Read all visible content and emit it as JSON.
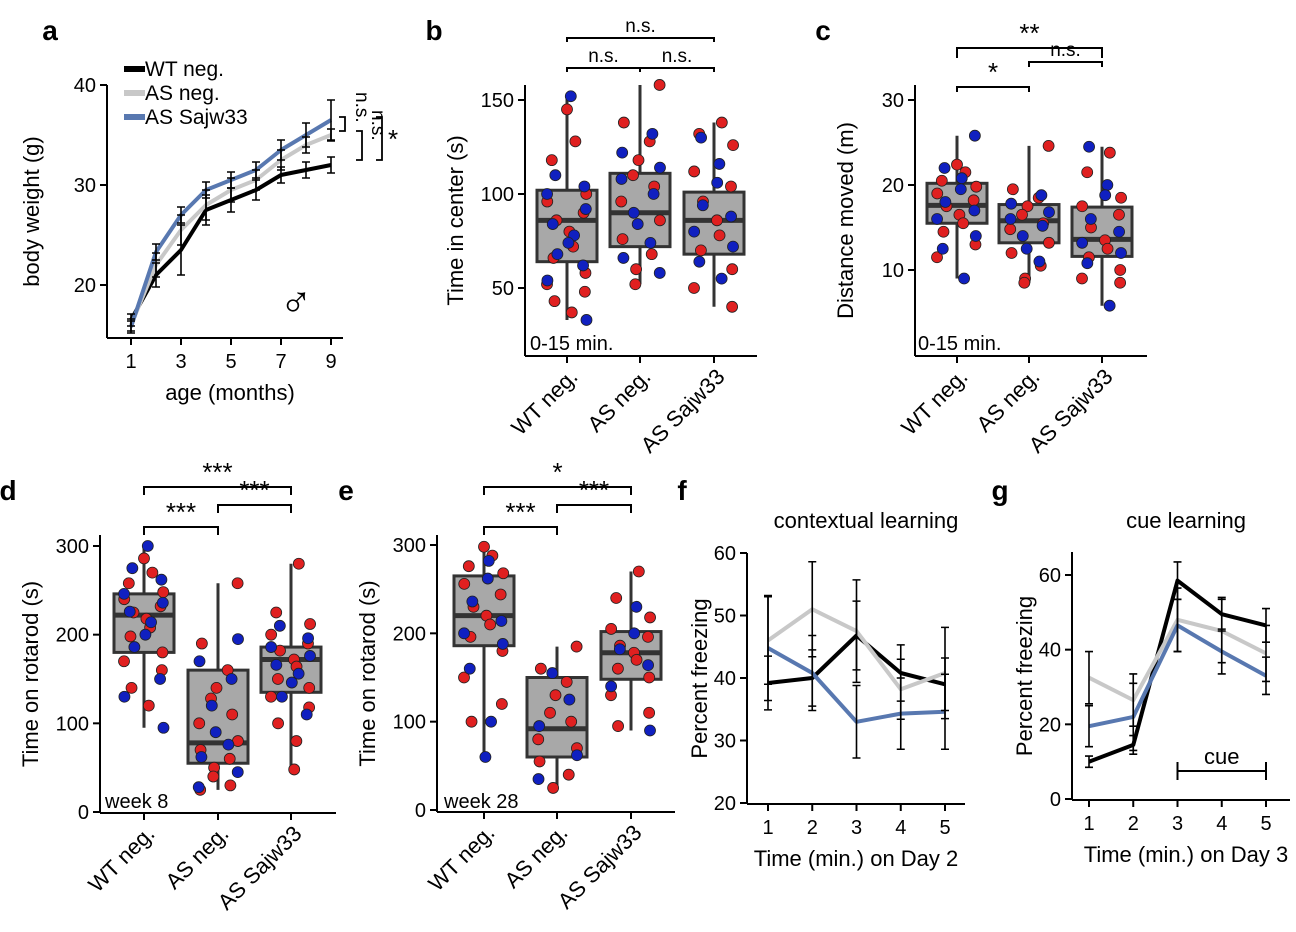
{
  "colors": {
    "wt": "#000000",
    "as_neg": "#c8c8c8",
    "sajw": "#5878b0",
    "female": "#e02020",
    "male": "#1020c0",
    "box": "#a8a8a8"
  },
  "chart_data": [
    {
      "id": "a",
      "panel_label": "a",
      "type": "line",
      "xlabel": "age (months)",
      "ylabel": "body weight (g)",
      "x": [
        1,
        2,
        3,
        4,
        5,
        6,
        7,
        8,
        9
      ],
      "xticks": [
        1,
        3,
        5,
        7,
        9
      ],
      "yticks": [
        20,
        30,
        40
      ],
      "xlim": [
        0.5,
        9.5
      ],
      "ylim": [
        15,
        40
      ],
      "series": [
        {
          "name": "WT neg.",
          "color": "#000000",
          "values": [
            16.5,
            21,
            23.5,
            27.5,
            28.5,
            29.5,
            31,
            31.5,
            32
          ],
          "err": [
            0.6,
            1.2,
            2.5,
            1.5,
            1.2,
            1,
            0.8,
            0.8,
            0.8
          ]
        },
        {
          "name": "AS neg.",
          "color": "#c8c8c8",
          "values": [
            16,
            22,
            25.5,
            28,
            29.5,
            30.5,
            32.5,
            34,
            35
          ],
          "err": [
            0.6,
            1.2,
            1.5,
            1.5,
            1.2,
            1,
            1,
            0.8,
            0.6
          ]
        },
        {
          "name": "AS Sajw33",
          "color": "#5878b0",
          "values": [
            15.8,
            23.3,
            27,
            29.5,
            30.5,
            31.5,
            33.5,
            35,
            36.5
          ],
          "err": [
            0.6,
            0.8,
            0.8,
            0.8,
            0.8,
            0.8,
            1,
            1.2,
            2
          ]
        }
      ],
      "legend": [
        "WT neg.",
        "AS neg.",
        "AS Sajw33"
      ],
      "symbol": "♂",
      "sig": [
        {
          "label": "n.s."
        },
        {
          "label": "n.s."
        },
        {
          "label": "*"
        }
      ]
    },
    {
      "id": "b",
      "panel_label": "b",
      "type": "box",
      "ylabel": "Time in center (s)",
      "categories": [
        "WT neg.",
        "AS neg.",
        "AS Sajw33"
      ],
      "yticks": [
        50,
        100,
        150
      ],
      "ylim": [
        20,
        165
      ],
      "boxes": [
        {
          "min": 33,
          "q1": 64,
          "median": 86,
          "q3": 102,
          "max": 152
        },
        {
          "min": 52,
          "q1": 72,
          "median": 90,
          "q3": 111,
          "max": 158
        },
        {
          "min": 40,
          "q1": 68,
          "median": 86,
          "q3": 101,
          "max": 138
        }
      ],
      "points": [
        {
          "f": [
            145,
            128,
            118,
            100,
            96,
            90,
            86,
            80,
            72,
            66,
            58,
            52,
            48,
            43,
            37
          ],
          "m": [
            152,
            110,
            104,
            100,
            92,
            84,
            78,
            74,
            68,
            62,
            54,
            33
          ]
        },
        {
          "f": [
            158,
            138,
            128,
            118,
            110,
            104,
            96,
            86,
            76,
            68,
            60,
            52
          ],
          "m": [
            132,
            122,
            114,
            108,
            100,
            90,
            84,
            74,
            66,
            58
          ]
        },
        {
          "f": [
            138,
            132,
            126,
            112,
            104,
            96,
            86,
            78,
            70,
            60,
            50,
            40
          ],
          "m": [
            130,
            116,
            106,
            94,
            88,
            80,
            72,
            64,
            55
          ]
        }
      ],
      "inset": "0-15 min.",
      "sig": [
        {
          "label": "n.s."
        },
        {
          "label": "n.s."
        },
        {
          "label": "n.s."
        }
      ]
    },
    {
      "id": "c",
      "panel_label": "c",
      "type": "box",
      "ylabel": "Distance moved (m)",
      "categories": [
        "WT neg.",
        "AS neg.",
        "AS Sajw33"
      ],
      "yticks": [
        10,
        20,
        30
      ],
      "ylim": [
        0,
        31
      ],
      "boxes": [
        {
          "min": 9,
          "q1": 15.5,
          "median": 17.6,
          "q3": 20.2,
          "max": 25.8
        },
        {
          "min": 8.5,
          "q1": 13.2,
          "median": 15.8,
          "q3": 17.7,
          "max": 24.6
        },
        {
          "min": 5.8,
          "q1": 11.6,
          "median": 13.6,
          "q3": 17.4,
          "max": 24.5
        }
      ],
      "points": [
        {
          "f": [
            22.4,
            21.5,
            20.5,
            19.8,
            19,
            18.2,
            17.5,
            16.5,
            15.5,
            14.5,
            13,
            11.5
          ],
          "m": [
            25.8,
            22,
            20.8,
            19.5,
            18,
            17,
            16,
            14,
            12.5,
            9
          ]
        },
        {
          "f": [
            24.6,
            19.5,
            18.5,
            17.5,
            16.5,
            15.5,
            14.8,
            13.2,
            12,
            10.5,
            9,
            8.5
          ],
          "m": [
            18.8,
            17.8,
            16.8,
            16,
            15.2,
            14,
            12.5,
            11
          ]
        },
        {
          "f": [
            23.8,
            21.5,
            18.5,
            17.5,
            16.5,
            15,
            13.5,
            12.5,
            11.5,
            10,
            9,
            8.5
          ],
          "m": [
            24.5,
            20,
            18.8,
            16,
            14.5,
            13.2,
            12,
            10.8,
            5.8
          ]
        }
      ],
      "inset": "0-15 min.",
      "sig": [
        {
          "label": "*"
        },
        {
          "label": "n.s."
        },
        {
          "label": "**"
        }
      ]
    },
    {
      "id": "d",
      "panel_label": "d",
      "type": "box",
      "ylabel": "Time on rotarod (s)",
      "categories": [
        "WT neg.",
        "AS neg.",
        "AS Sajw33"
      ],
      "yticks": [
        0,
        100,
        200,
        300
      ],
      "ylim": [
        0,
        310
      ],
      "boxes": [
        {
          "min": 95,
          "q1": 180,
          "median": 222,
          "q3": 246,
          "max": 300
        },
        {
          "min": 25,
          "q1": 55,
          "median": 78,
          "q3": 160,
          "max": 258
        },
        {
          "min": 48,
          "q1": 135,
          "median": 172,
          "q3": 186,
          "max": 280
        }
      ],
      "points": [
        {
          "f": [
            286,
            270,
            258,
            248,
            240,
            232,
            225,
            218,
            208,
            198,
            180,
            170,
            160,
            140,
            120
          ],
          "m": [
            300,
            275,
            262,
            246,
            236,
            226,
            214,
            200,
            186,
            150,
            130,
            95
          ]
        },
        {
          "f": [
            258,
            190,
            160,
            140,
            128,
            110,
            100,
            80,
            70,
            60,
            50,
            40,
            30,
            25
          ],
          "m": [
            195,
            170,
            150,
            120,
            90,
            76,
            62,
            45,
            28
          ]
        },
        {
          "f": [
            280,
            225,
            212,
            200,
            190,
            182,
            172,
            164,
            150,
            140,
            130,
            118,
            100,
            80,
            48
          ],
          "m": [
            210,
            196,
            186,
            176,
            166,
            156,
            146,
            130,
            110
          ]
        }
      ],
      "inset": "week 8",
      "sig": [
        {
          "label": "***"
        },
        {
          "label": "***"
        },
        {
          "label": "***"
        }
      ]
    },
    {
      "id": "e",
      "panel_label": "e",
      "type": "box",
      "ylabel": "Time on rotarod (s)",
      "categories": [
        "WT neg.",
        "AS neg.",
        "AS Sajw33"
      ],
      "yticks": [
        0,
        100,
        200,
        300
      ],
      "ylim": [
        0,
        310
      ],
      "boxes": [
        {
          "min": 60,
          "q1": 186,
          "median": 220,
          "q3": 265,
          "max": 298
        },
        {
          "min": 25,
          "q1": 60,
          "median": 92,
          "q3": 150,
          "max": 185
        },
        {
          "min": 90,
          "q1": 148,
          "median": 178,
          "q3": 202,
          "max": 270
        }
      ],
      "points": [
        {
          "f": [
            298,
            288,
            276,
            268,
            256,
            244,
            230,
            220,
            210,
            196,
            180,
            150,
            120,
            100
          ],
          "m": [
            282,
            262,
            236,
            214,
            200,
            188,
            160,
            100,
            60
          ]
        },
        {
          "f": [
            185,
            160,
            145,
            130,
            110,
            100,
            80,
            70,
            55,
            40,
            25
          ],
          "m": [
            155,
            125,
            95,
            62,
            35
          ]
        },
        {
          "f": [
            270,
            240,
            218,
            205,
            196,
            186,
            178,
            170,
            160,
            150,
            130,
            110,
            95
          ],
          "m": [
            230,
            200,
            182,
            164,
            140,
            90
          ]
        }
      ],
      "inset": "week 28",
      "sig": [
        {
          "label": "***"
        },
        {
          "label": "***"
        },
        {
          "label": "*"
        }
      ]
    },
    {
      "id": "f",
      "panel_label": "f",
      "type": "line",
      "title": "contextual learning",
      "xlabel": "Time (min.) on Day 2",
      "ylabel": "Percent freezing",
      "x": [
        1,
        2,
        3,
        4,
        5
      ],
      "xticks": [
        1,
        2,
        3,
        4,
        5
      ],
      "yticks": [
        20,
        30,
        40,
        50,
        60
      ],
      "xlim": [
        0.7,
        5.3
      ],
      "ylim": [
        20,
        60
      ],
      "series": [
        {
          "name": "WT neg.",
          "color": "#000000",
          "values": [
            39.2,
            40,
            46.8,
            40.8,
            39
          ],
          "err": [
            4.3,
            4.5,
            5.5,
            4.5,
            4.2
          ]
        },
        {
          "name": "AS neg.",
          "color": "#c8c8c8",
          "values": [
            46,
            51,
            47.5,
            38.2,
            40.8
          ],
          "err": [
            7,
            7.6,
            8.2,
            4.8,
            7.3
          ]
        },
        {
          "name": "AS Sajw33",
          "color": "#5878b0",
          "values": [
            44.8,
            40.8,
            33,
            34.3,
            34.6
          ],
          "err": [
            8.4,
            6,
            5.8,
            5.7,
            6
          ]
        }
      ]
    },
    {
      "id": "g",
      "panel_label": "g",
      "type": "line",
      "title": "cue learning",
      "xlabel": "Time (min.) on Day 3",
      "ylabel": "Percent freezing",
      "x": [
        1,
        2,
        3,
        4,
        5
      ],
      "xticks": [
        1,
        2,
        3,
        4,
        5
      ],
      "yticks": [
        0,
        20,
        40,
        60
      ],
      "xlim": [
        0.7,
        5.3
      ],
      "ylim": [
        0,
        66
      ],
      "series": [
        {
          "name": "WT neg.",
          "color": "#000000",
          "values": [
            10,
            14.5,
            58.5,
            49.5,
            46.5
          ],
          "err": [
            1.5,
            2.5,
            5,
            4.5,
            4.5
          ]
        },
        {
          "name": "AS neg.",
          "color": "#c8c8c8",
          "values": [
            32.5,
            26.5,
            48,
            45,
            39
          ],
          "err": [
            7,
            7,
            8.5,
            8.5,
            7.5
          ]
        },
        {
          "name": "AS Sajw33",
          "color": "#5878b0",
          "values": [
            19.5,
            22,
            46.5,
            39.5,
            33
          ],
          "err": [
            5.5,
            9,
            7,
            6,
            5
          ]
        }
      ],
      "cue_label": "cue",
      "cue_range": [
        3,
        5
      ]
    }
  ]
}
